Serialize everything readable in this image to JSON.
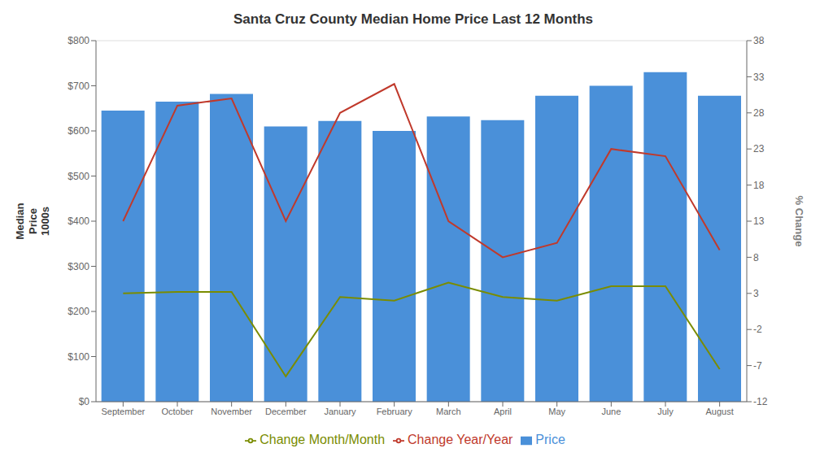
{
  "chart_data": {
    "type": "bar",
    "title": "Santa Cruz County Median Home Price Last 12 Months",
    "ylabel": "Median\nPrice\n1000s",
    "y2label": "% Change",
    "categories": [
      "September",
      "October",
      "November",
      "December",
      "January",
      "February",
      "March",
      "April",
      "May",
      "June",
      "July",
      "August"
    ],
    "series": [
      {
        "name": "Price",
        "type": "bar",
        "color": "#4a90d9",
        "values": [
          645,
          665,
          682,
          610,
          622,
          600,
          632,
          624,
          678,
          700,
          730,
          678
        ]
      },
      {
        "name": "Change Year/Year",
        "type": "line",
        "axis": "y2",
        "color": "#c0392b",
        "values": [
          13,
          29,
          30,
          13,
          28,
          32,
          13,
          8,
          10,
          23,
          22,
          9
        ]
      },
      {
        "name": "Change Month/Month",
        "type": "line",
        "axis": "y2",
        "color": "#7a8c00",
        "values": [
          3,
          3.2,
          3.2,
          -8.5,
          2.5,
          2,
          4.5,
          2.5,
          2,
          4,
          4,
          -7.5
        ]
      }
    ],
    "ylim": [
      0,
      800
    ],
    "yticks": [
      {
        "value": 0,
        "label": "$0"
      },
      {
        "value": 100,
        "label": "$100"
      },
      {
        "value": 200,
        "label": "$200"
      },
      {
        "value": 300,
        "label": "$300"
      },
      {
        "value": 400,
        "label": "$400"
      },
      {
        "value": 500,
        "label": "$500"
      },
      {
        "value": 600,
        "label": "$600"
      },
      {
        "value": 700,
        "label": "$700"
      },
      {
        "value": 800,
        "label": "$800"
      }
    ],
    "y2lim": [
      -12,
      38
    ],
    "y2ticks": [
      -12,
      -7,
      -2,
      3,
      8,
      13,
      18,
      23,
      28,
      33,
      38
    ],
    "grid": "y",
    "legend": "bottom"
  }
}
